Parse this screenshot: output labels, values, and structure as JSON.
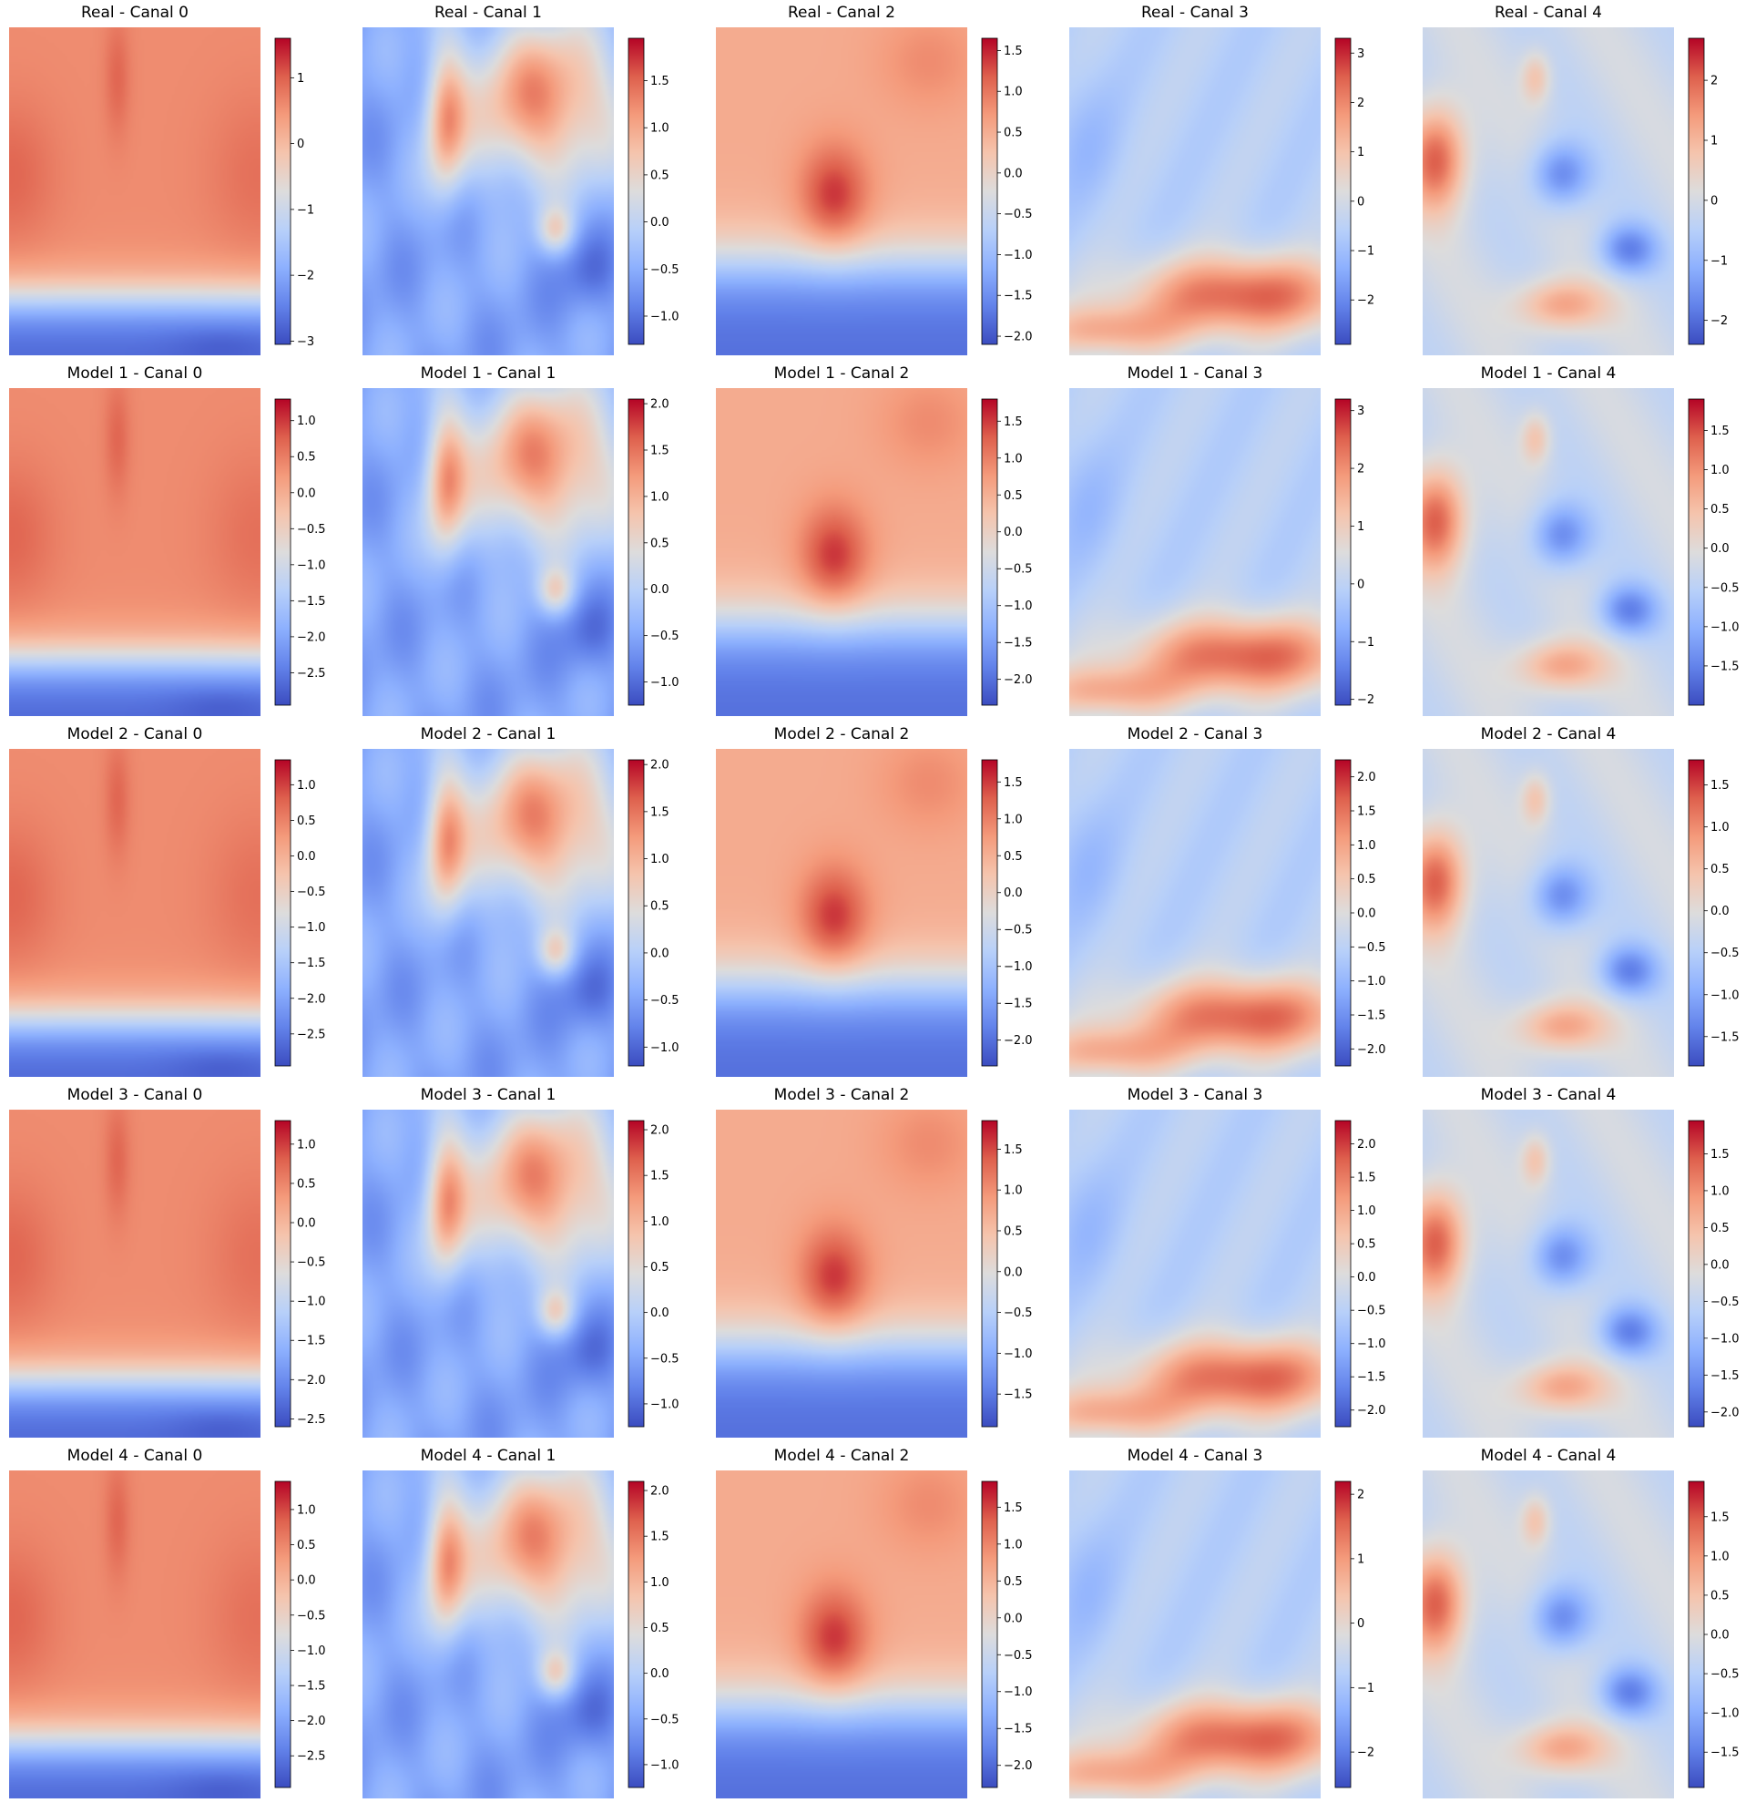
{
  "figure": {
    "colormap": "coolwarm",
    "colors": {
      "low": "#3b4cc0",
      "mid": "#dddcdc",
      "high": "#b40426"
    }
  },
  "chart_data": [
    {
      "type": "heatmap",
      "title": "Real - Canal 0",
      "pattern": "c0",
      "colorbar": {
        "range": [
          -3.05,
          1.6
        ],
        "ticks": [
          1,
          0,
          -1,
          -2,
          -3
        ],
        "tick_labels": [
          "1",
          "0",
          "−1",
          "−2",
          "−3"
        ]
      }
    },
    {
      "type": "heatmap",
      "title": "Real - Canal 1",
      "pattern": "c1",
      "colorbar": {
        "range": [
          -1.3,
          1.95
        ],
        "ticks": [
          1.5,
          1.0,
          0.5,
          0.0,
          -0.5,
          -1.0
        ],
        "tick_labels": [
          "1.5",
          "1.0",
          "0.5",
          "0.0",
          "−0.5",
          "−1.0"
        ]
      }
    },
    {
      "type": "heatmap",
      "title": "Real - Canal 2",
      "pattern": "c2",
      "colorbar": {
        "range": [
          -2.1,
          1.65
        ],
        "ticks": [
          1.5,
          1.0,
          0.5,
          0.0,
          -0.5,
          -1.0,
          -1.5,
          -2.0
        ],
        "tick_labels": [
          "1.5",
          "1.0",
          "0.5",
          "0.0",
          "−0.5",
          "−1.0",
          "−1.5",
          "−2.0"
        ]
      }
    },
    {
      "type": "heatmap",
      "title": "Real - Canal 3",
      "pattern": "c3",
      "colorbar": {
        "range": [
          -2.9,
          3.3
        ],
        "ticks": [
          3,
          2,
          1,
          0,
          -1,
          -2
        ],
        "tick_labels": [
          "3",
          "2",
          "1",
          "0",
          "−1",
          "−2"
        ]
      }
    },
    {
      "type": "heatmap",
      "title": "Real - Canal 4",
      "pattern": "c4",
      "colorbar": {
        "range": [
          -2.4,
          2.7
        ],
        "ticks": [
          2,
          1,
          0,
          -1,
          -2
        ],
        "tick_labels": [
          "2",
          "1",
          "0",
          "−1",
          "−2"
        ]
      }
    },
    {
      "type": "heatmap",
      "title": "Model 1 - Canal 0",
      "pattern": "c0",
      "colorbar": {
        "range": [
          -2.95,
          1.3
        ],
        "ticks": [
          1.0,
          0.5,
          0.0,
          -0.5,
          -1.0,
          -1.5,
          -2.0,
          -2.5
        ],
        "tick_labels": [
          "1.0",
          "0.5",
          "0.0",
          "−0.5",
          "−1.0",
          "−1.5",
          "−2.0",
          "−2.5"
        ]
      }
    },
    {
      "type": "heatmap",
      "title": "Model 1 - Canal 1",
      "pattern": "c1",
      "colorbar": {
        "range": [
          -1.25,
          2.05
        ],
        "ticks": [
          2.0,
          1.5,
          1.0,
          0.5,
          0.0,
          -0.5,
          -1.0
        ],
        "tick_labels": [
          "2.0",
          "1.5",
          "1.0",
          "0.5",
          "0.0",
          "−0.5",
          "−1.0"
        ]
      }
    },
    {
      "type": "heatmap",
      "title": "Model 1 - Canal 2",
      "pattern": "c2",
      "colorbar": {
        "range": [
          -2.35,
          1.8
        ],
        "ticks": [
          1.5,
          1.0,
          0.5,
          0.0,
          -0.5,
          -1.0,
          -1.5,
          -2.0
        ],
        "tick_labels": [
          "1.5",
          "1.0",
          "0.5",
          "0.0",
          "−0.5",
          "−1.0",
          "−1.5",
          "−2.0"
        ]
      }
    },
    {
      "type": "heatmap",
      "title": "Model 1 - Canal 3",
      "pattern": "c3",
      "colorbar": {
        "range": [
          -2.1,
          3.2
        ],
        "ticks": [
          3,
          2,
          1,
          0,
          -1,
          -2
        ],
        "tick_labels": [
          "3",
          "2",
          "1",
          "0",
          "−1",
          "−2"
        ]
      }
    },
    {
      "type": "heatmap",
      "title": "Model 1 - Canal 4",
      "pattern": "c4",
      "colorbar": {
        "range": [
          -2.0,
          1.9
        ],
        "ticks": [
          1.5,
          1.0,
          0.5,
          0.0,
          -0.5,
          -1.0,
          -1.5
        ],
        "tick_labels": [
          "1.5",
          "1.0",
          "0.5",
          "0.0",
          "−0.5",
          "−1.0",
          "−1.5"
        ]
      }
    },
    {
      "type": "heatmap",
      "title": "Model 2 - Canal 0",
      "pattern": "c0",
      "colorbar": {
        "range": [
          -2.95,
          1.35
        ],
        "ticks": [
          1.0,
          0.5,
          0.0,
          -0.5,
          -1.0,
          -1.5,
          -2.0,
          -2.5
        ],
        "tick_labels": [
          "1.0",
          "0.5",
          "0.0",
          "−0.5",
          "−1.0",
          "−1.5",
          "−2.0",
          "−2.5"
        ]
      }
    },
    {
      "type": "heatmap",
      "title": "Model 2 - Canal 1",
      "pattern": "c1",
      "colorbar": {
        "range": [
          -1.2,
          2.05
        ],
        "ticks": [
          2.0,
          1.5,
          1.0,
          0.5,
          0.0,
          -0.5,
          -1.0
        ],
        "tick_labels": [
          "2.0",
          "1.5",
          "1.0",
          "0.5",
          "0.0",
          "−0.5",
          "−1.0"
        ]
      }
    },
    {
      "type": "heatmap",
      "title": "Model 2 - Canal 2",
      "pattern": "c2",
      "colorbar": {
        "range": [
          -2.35,
          1.8
        ],
        "ticks": [
          1.5,
          1.0,
          0.5,
          0.0,
          -0.5,
          -1.0,
          -1.5,
          -2.0
        ],
        "tick_labels": [
          "1.5",
          "1.0",
          "0.5",
          "0.0",
          "−0.5",
          "−1.0",
          "−1.5",
          "−2.0"
        ]
      }
    },
    {
      "type": "heatmap",
      "title": "Model 2 - Canal 3",
      "pattern": "c3",
      "colorbar": {
        "range": [
          -2.25,
          2.25
        ],
        "ticks": [
          2.0,
          1.5,
          1.0,
          0.5,
          0.0,
          -0.5,
          -1.0,
          -1.5,
          -2.0
        ],
        "tick_labels": [
          "2.0",
          "1.5",
          "1.0",
          "0.5",
          "0.0",
          "−0.5",
          "−1.0",
          "−1.5",
          "−2.0"
        ]
      }
    },
    {
      "type": "heatmap",
      "title": "Model 2 - Canal 4",
      "pattern": "c4",
      "colorbar": {
        "range": [
          -1.85,
          1.8
        ],
        "ticks": [
          1.5,
          1.0,
          0.5,
          0.0,
          -0.5,
          -1.0,
          -1.5
        ],
        "tick_labels": [
          "1.5",
          "1.0",
          "0.5",
          "0.0",
          "−0.5",
          "−1.0",
          "−1.5"
        ]
      }
    },
    {
      "type": "heatmap",
      "title": "Model 3 - Canal 0",
      "pattern": "c0",
      "colorbar": {
        "range": [
          -2.6,
          1.3
        ],
        "ticks": [
          1.0,
          0.5,
          0.0,
          -0.5,
          -1.0,
          -1.5,
          -2.0,
          -2.5
        ],
        "tick_labels": [
          "1.0",
          "0.5",
          "0.0",
          "−0.5",
          "−1.0",
          "−1.5",
          "−2.0",
          "−2.5"
        ]
      }
    },
    {
      "type": "heatmap",
      "title": "Model 3 - Canal 1",
      "pattern": "c1",
      "colorbar": {
        "range": [
          -1.25,
          2.1
        ],
        "ticks": [
          2.0,
          1.5,
          1.0,
          0.5,
          0.0,
          -0.5,
          -1.0
        ],
        "tick_labels": [
          "2.0",
          "1.5",
          "1.0",
          "0.5",
          "0.0",
          "−0.5",
          "−1.0"
        ]
      }
    },
    {
      "type": "heatmap",
      "title": "Model 3 - Canal 2",
      "pattern": "c2",
      "colorbar": {
        "range": [
          -1.9,
          1.85
        ],
        "ticks": [
          1.5,
          1.0,
          0.5,
          0.0,
          -0.5,
          -1.0,
          -1.5
        ],
        "tick_labels": [
          "1.5",
          "1.0",
          "0.5",
          "0.0",
          "−0.5",
          "−1.0",
          "−1.5"
        ]
      }
    },
    {
      "type": "heatmap",
      "title": "Model 3 - Canal 3",
      "pattern": "c3",
      "colorbar": {
        "range": [
          -2.25,
          2.35
        ],
        "ticks": [
          2.0,
          1.5,
          1.0,
          0.5,
          0.0,
          -0.5,
          -1.0,
          -1.5,
          -2.0
        ],
        "tick_labels": [
          "2.0",
          "1.5",
          "1.0",
          "0.5",
          "0.0",
          "−0.5",
          "−1.0",
          "−1.5",
          "−2.0"
        ]
      }
    },
    {
      "type": "heatmap",
      "title": "Model 3 - Canal 4",
      "pattern": "c4",
      "colorbar": {
        "range": [
          -2.2,
          1.95
        ],
        "ticks": [
          1.5,
          1.0,
          0.5,
          0.0,
          -0.5,
          -1.0,
          -1.5,
          -2.0
        ],
        "tick_labels": [
          "1.5",
          "1.0",
          "0.5",
          "0.0",
          "−0.5",
          "−1.0",
          "−1.5",
          "−2.0"
        ]
      }
    },
    {
      "type": "heatmap",
      "title": "Model 4 - Canal 0",
      "pattern": "c0",
      "colorbar": {
        "range": [
          -2.95,
          1.4
        ],
        "ticks": [
          1.0,
          0.5,
          0.0,
          -0.5,
          -1.0,
          -1.5,
          -2.0,
          -2.5
        ],
        "tick_labels": [
          "1.0",
          "0.5",
          "0.0",
          "−0.5",
          "−1.0",
          "−1.5",
          "−2.0",
          "−2.5"
        ]
      }
    },
    {
      "type": "heatmap",
      "title": "Model 4 - Canal 1",
      "pattern": "c1",
      "colorbar": {
        "range": [
          -1.25,
          2.1
        ],
        "ticks": [
          2.0,
          1.5,
          1.0,
          0.5,
          0.0,
          -0.5,
          -1.0
        ],
        "tick_labels": [
          "2.0",
          "1.5",
          "1.0",
          "0.5",
          "0.0",
          "−0.5",
          "−1.0"
        ]
      }
    },
    {
      "type": "heatmap",
      "title": "Model 4 - Canal 2",
      "pattern": "c2",
      "colorbar": {
        "range": [
          -2.3,
          1.85
        ],
        "ticks": [
          1.5,
          1.0,
          0.5,
          0.0,
          -0.5,
          -1.0,
          -1.5,
          -2.0
        ],
        "tick_labels": [
          "1.5",
          "1.0",
          "0.5",
          "0.0",
          "−0.5",
          "−1.0",
          "−1.5",
          "−2.0"
        ]
      }
    },
    {
      "type": "heatmap",
      "title": "Model 4 - Canal 3",
      "pattern": "c3",
      "colorbar": {
        "range": [
          -2.55,
          2.2
        ],
        "ticks": [
          2,
          1,
          0,
          -1,
          -2
        ],
        "tick_labels": [
          "2",
          "1",
          "0",
          "−1",
          "−2"
        ]
      }
    },
    {
      "type": "heatmap",
      "title": "Model 4 - Canal 4",
      "pattern": "c4",
      "colorbar": {
        "range": [
          -1.95,
          1.95
        ],
        "ticks": [
          1.5,
          1.0,
          0.5,
          0.0,
          -0.5,
          -1.0,
          -1.5
        ],
        "tick_labels": [
          "1.5",
          "1.0",
          "0.5",
          "0.0",
          "−0.5",
          "−1.0",
          "−1.5"
        ]
      }
    }
  ]
}
